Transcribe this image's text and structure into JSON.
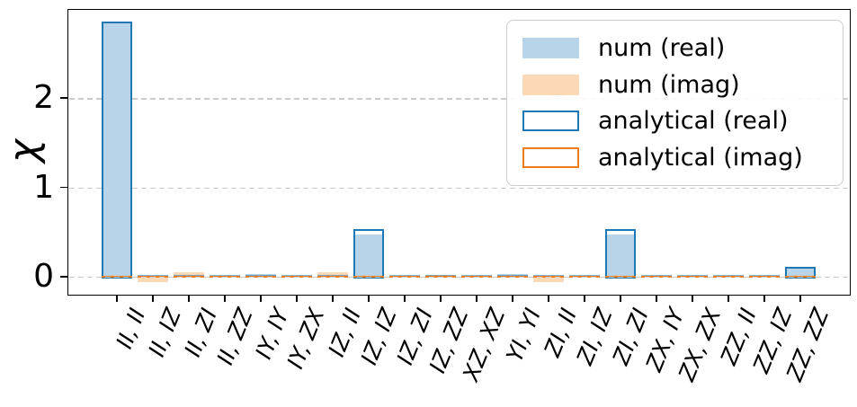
{
  "colors": {
    "blue_fill": "#b8d4e9",
    "orange_fill": "#fcd9b6",
    "blue_edge": "#1f77b4",
    "orange_edge": "#ec7c1a",
    "grid": "#cccccc",
    "frame": "#000000",
    "background": "#ffffff"
  },
  "chart_data": {
    "type": "bar",
    "title": "",
    "xlabel": "",
    "ylabel": "χ",
    "yticks": [
      0,
      1,
      2
    ],
    "ylim": [
      -0.2,
      3.0
    ],
    "grid": "horizontal dashed at yticks",
    "legend_position": "upper right",
    "x_tick_rotation_deg": 68,
    "categories": [
      "II, II",
      "II, IZ",
      "II, ZI",
      "II, ZZ",
      "IY, IY",
      "IY, ZX",
      "IZ, II",
      "IZ, IZ",
      "IZ, ZI",
      "IZ, ZZ",
      "XZ, XZ",
      "YI, YI",
      "ZI, II",
      "ZI, IZ",
      "ZI, ZI",
      "ZX, IY",
      "ZX, ZX",
      "ZZ, II",
      "ZZ, IZ",
      "ZZ, ZZ"
    ],
    "series": [
      {
        "name": "num (real)",
        "style": "filled",
        "color_key": "blue_fill",
        "values": [
          2.85,
          0,
          0,
          0,
          0.03,
          0,
          0,
          0.47,
          0,
          0,
          0.01,
          0.03,
          0,
          0,
          0.47,
          0.01,
          0.01,
          0.01,
          0.01,
          0.09
        ]
      },
      {
        "name": "num (imag)",
        "style": "filled",
        "color_key": "orange_fill",
        "values": [
          0,
          -0.06,
          0.05,
          0.015,
          0,
          0.01,
          0.05,
          0,
          0.01,
          0.025,
          0,
          0,
          -0.06,
          0.01,
          0,
          0.01,
          0.01,
          0.01,
          0.01,
          0
        ]
      },
      {
        "name": "analytical (real)",
        "style": "outline",
        "color_key": "blue_edge",
        "values": [
          2.85,
          0,
          0,
          0,
          0,
          0,
          0,
          0.53,
          0,
          0,
          0,
          0,
          0,
          0,
          0.53,
          0,
          0,
          0,
          0,
          0.11
        ]
      },
      {
        "name": "analytical (imag)",
        "style": "outline",
        "color_key": "orange_edge",
        "values": [
          0,
          0,
          0,
          0,
          0,
          0,
          0,
          0,
          0,
          0,
          0,
          0,
          0,
          0,
          0,
          0,
          0,
          0,
          0,
          0
        ]
      }
    ]
  }
}
